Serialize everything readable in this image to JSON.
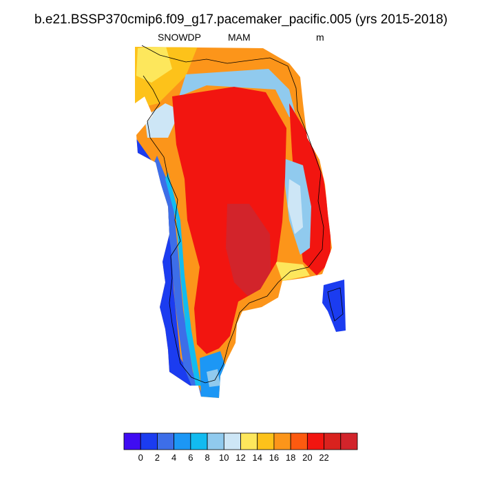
{
  "title": "b.e21.BSSP370cmip6.f09_g17.pacemaker_pacific.005 (yrs 2015-2018)",
  "subtitle": {
    "left": "SNOWDP",
    "center": "MAM",
    "right": "m"
  },
  "colorbar": {
    "colors": [
      "#3f0cf2",
      "#1b3cf0",
      "#3d6ee8",
      "#1c97f5",
      "#12bbf0",
      "#90caee",
      "#cde6f6",
      "#fde75c",
      "#fdc21a",
      "#fc951a",
      "#fc5a10",
      "#f21510",
      "#d9221e",
      "#d2242b"
    ],
    "labels": [
      "0",
      "2",
      "4",
      "6",
      "8",
      "10",
      "12",
      "14",
      "16",
      "18",
      "20",
      "22"
    ]
  },
  "map": {
    "region": "Greenland",
    "variable": "snow depth",
    "units": "m"
  }
}
